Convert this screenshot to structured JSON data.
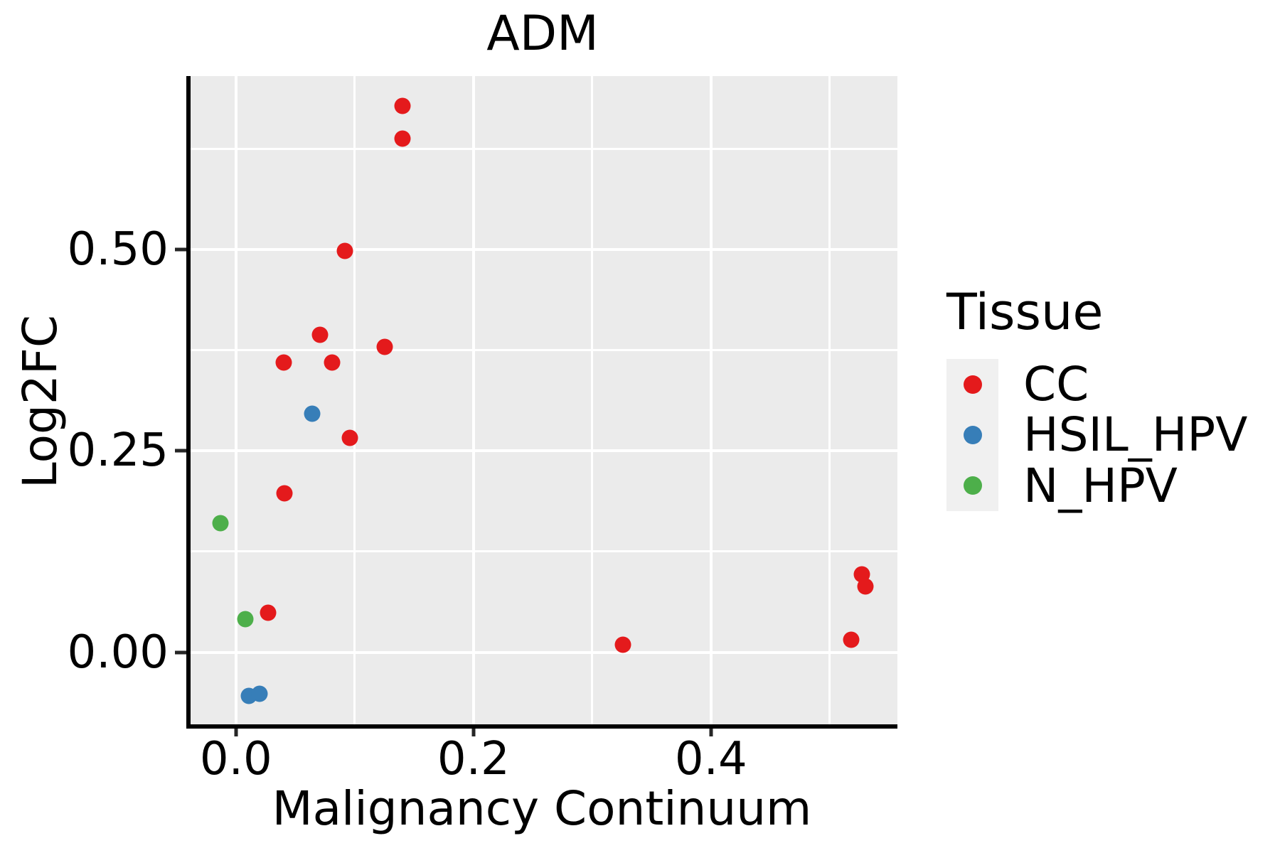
{
  "chart_data": {
    "type": "scatter",
    "title": "ADM",
    "xlabel": "Malignancy Continuum",
    "ylabel": "Log2FC",
    "xlim": [
      -0.04,
      0.557
    ],
    "ylim": [
      -0.092,
      0.715
    ],
    "x_ticks": {
      "values": [
        0.0,
        0.2,
        0.4
      ],
      "labels": [
        "0.0",
        "0.2",
        "0.4"
      ]
    },
    "y_ticks": {
      "values": [
        0.0,
        0.25,
        0.5
      ],
      "labels": [
        "0.00",
        "0.25",
        "0.50"
      ]
    },
    "x_minor_gridlines": [
      0.1,
      0.3,
      0.5
    ],
    "y_minor_gridlines": [
      0.125,
      0.375,
      0.625
    ],
    "grid": "on",
    "panel_background": "#EBEBEB",
    "gridline_color": "#FFFFFF",
    "legend": {
      "title": "Tissue",
      "position": "right",
      "entries": [
        {
          "label": "CC",
          "color": "#E41A1C"
        },
        {
          "label": "HSIL_HPV",
          "color": "#377EB8"
        },
        {
          "label": "N_HPV",
          "color": "#4DAF4A"
        }
      ]
    },
    "series": [
      {
        "name": "CC",
        "color": "#E41A1C",
        "points": [
          [
            0.14,
            0.678
          ],
          [
            0.14,
            0.637
          ],
          [
            0.092,
            0.498
          ],
          [
            0.071,
            0.394
          ],
          [
            0.125,
            0.379
          ],
          [
            0.04,
            0.36
          ],
          [
            0.081,
            0.36
          ],
          [
            0.096,
            0.266
          ],
          [
            0.041,
            0.197
          ],
          [
            0.027,
            0.049
          ],
          [
            0.326,
            0.009
          ],
          [
            0.527,
            0.097
          ],
          [
            0.53,
            0.082
          ],
          [
            0.518,
            0.016
          ]
        ]
      },
      {
        "name": "HSIL_HPV",
        "color": "#377EB8",
        "points": [
          [
            0.064,
            0.296
          ],
          [
            0.011,
            -0.054
          ],
          [
            0.02,
            -0.051
          ]
        ]
      },
      {
        "name": "N_HPV",
        "color": "#4DAF4A",
        "points": [
          [
            -0.013,
            0.16
          ],
          [
            0.008,
            0.041
          ]
        ]
      }
    ]
  }
}
